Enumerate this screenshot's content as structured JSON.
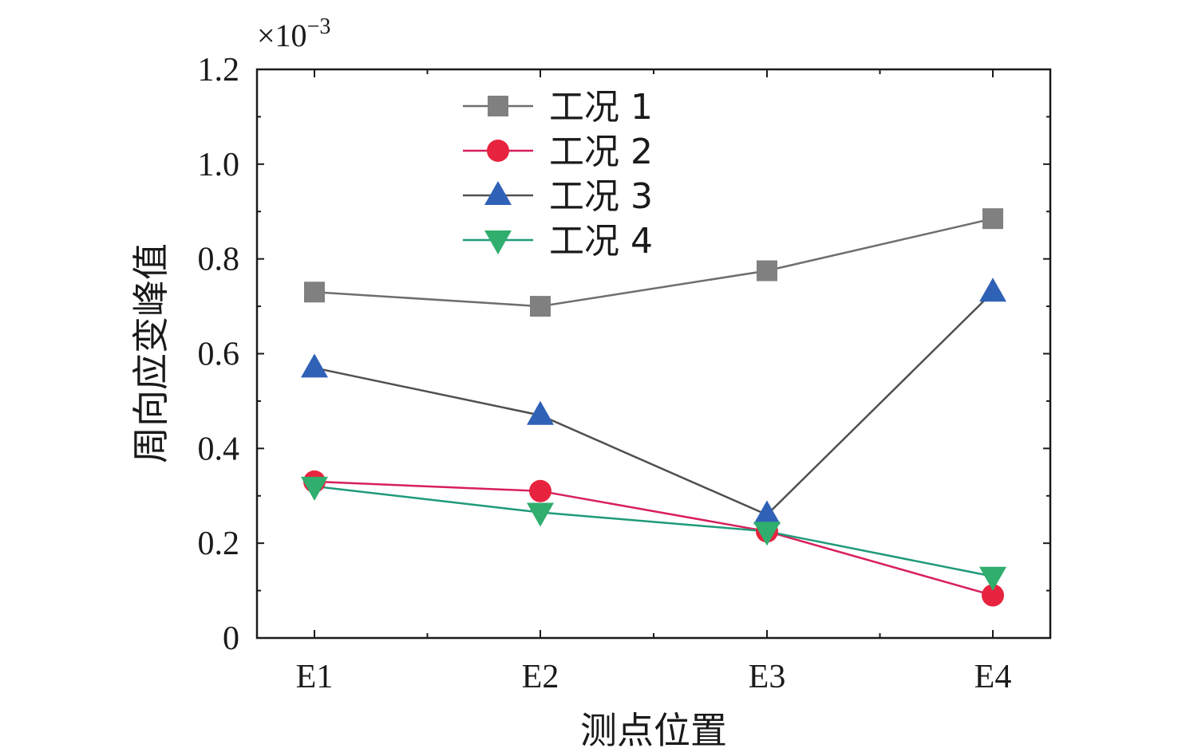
{
  "chart_data": {
    "type": "line",
    "categories": [
      "E1",
      "E2",
      "E3",
      "E4"
    ],
    "series": [
      {
        "name": "工况 1",
        "values": [
          0.73,
          0.7,
          0.775,
          0.885
        ],
        "marker": "square",
        "marker_color": "#808080",
        "line_color": "#6e6e6e"
      },
      {
        "name": "工况 2",
        "values": [
          0.33,
          0.31,
          0.225,
          0.09
        ],
        "marker": "circle",
        "marker_color": "#e8233f",
        "line_color": "#d81f5a"
      },
      {
        "name": "工况 3",
        "values": [
          0.57,
          0.47,
          0.26,
          0.73
        ],
        "marker": "triangle-up",
        "marker_color": "#2f62b6",
        "line_color": "#505050"
      },
      {
        "name": "工况 4",
        "values": [
          0.32,
          0.265,
          0.225,
          0.13
        ],
        "marker": "triangle-down",
        "marker_color": "#2fae6e",
        "line_color": "#1f9a7a"
      }
    ],
    "xlabel": "测点位置",
    "ylabel": "周向应变峰值",
    "y_multiplier": "×10",
    "y_multiplier_exp": "−3",
    "ylim": [
      0,
      1.2
    ],
    "yticks": [
      "0",
      "0.2",
      "0.4",
      "0.6",
      "0.8",
      "1.0",
      "1.2"
    ],
    "ytick_values": [
      0,
      0.2,
      0.4,
      0.6,
      0.8,
      1.0,
      1.2
    ],
    "grid": false,
    "legend_position": "top-left"
  }
}
